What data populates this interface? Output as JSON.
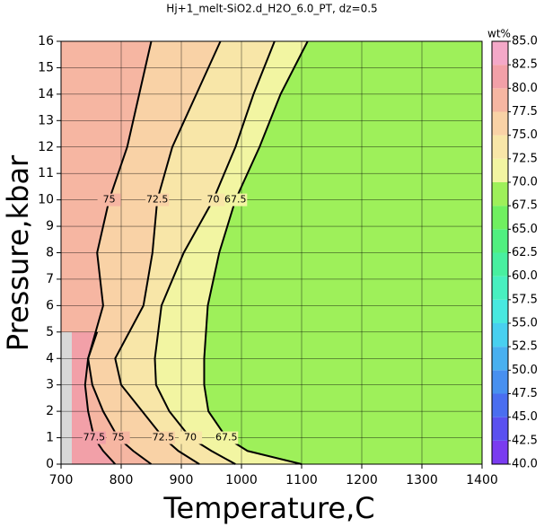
{
  "chart_data": {
    "type": "contour",
    "title": "Hj+1_melt-SiO2.d_H2O_6.0_PT, dz=0.5",
    "x_label": "Temperature,C",
    "y_label": "Pressure,kbar",
    "xlim": [
      700,
      1400
    ],
    "ylim": [
      0,
      16
    ],
    "xticks": [
      700,
      800,
      900,
      1000,
      1100,
      1200,
      1300,
      1400
    ],
    "yticks": [
      0,
      1,
      2,
      3,
      4,
      5,
      6,
      7,
      8,
      9,
      10,
      11,
      12,
      13,
      14,
      15,
      16
    ],
    "grid": true,
    "background_color": "#9ef05a",
    "contours": [
      {
        "level": 67.5,
        "color": "#f2f5a2",
        "y": [
          0,
          0.5,
          1,
          2,
          3,
          4,
          6,
          8,
          10,
          12,
          14,
          16
        ],
        "x": [
          1100,
          1010,
          975,
          945,
          938,
          938,
          944,
          963,
          990,
          1030,
          1065,
          1110
        ]
      },
      {
        "level": 70,
        "color": "#f8e6a8",
        "y": [
          0,
          0.5,
          1,
          2,
          3,
          4,
          6,
          8,
          10,
          12,
          14,
          16
        ],
        "x": [
          990,
          950,
          915,
          880,
          858,
          856,
          867,
          904,
          953,
          990,
          1020,
          1055
        ]
      },
      {
        "level": 72.5,
        "color": "#f9d2a6",
        "y": [
          0,
          0.5,
          1,
          2,
          3,
          4,
          6,
          8,
          10,
          12,
          14,
          16
        ],
        "x": [
          930,
          895,
          870,
          835,
          800,
          790,
          837,
          852,
          860,
          885,
          925,
          965
        ]
      },
      {
        "level": 75,
        "color": "#f6b6a2",
        "y": [
          0,
          0.5,
          1,
          2,
          3,
          4,
          6,
          8,
          10,
          12,
          14,
          16
        ],
        "x": [
          850,
          820,
          795,
          770,
          752,
          745,
          770,
          760,
          780,
          810,
          830,
          850
        ]
      },
      {
        "level": 77.5,
        "color": "#f2a0a8",
        "y": [
          0,
          0.5,
          1,
          2,
          3,
          4,
          5
        ],
        "x": [
          790,
          770,
          755,
          745,
          740,
          745,
          760
        ]
      }
    ],
    "colorbar": {
      "title": "wt%",
      "lim": [
        40,
        85
      ],
      "ticks": [
        {
          "value": 40,
          "label": "40.0"
        },
        {
          "value": 42.5,
          "label": "42.5"
        },
        {
          "value": 45,
          "label": "45.0"
        },
        {
          "value": 47.5,
          "label": "47.5"
        },
        {
          "value": 50,
          "label": "50.0"
        },
        {
          "value": 52.5,
          "label": "52.5"
        },
        {
          "value": 55,
          "label": "55.0"
        },
        {
          "value": 57.5,
          "label": "57.5"
        },
        {
          "value": 60,
          "label": "60.0"
        },
        {
          "value": 62.5,
          "label": "62.5"
        },
        {
          "value": 65,
          "label": "65.0"
        },
        {
          "value": 67.5,
          "label": "67.5"
        },
        {
          "value": 70,
          "label": "70.0"
        },
        {
          "value": 72.5,
          "label": "72.5"
        },
        {
          "value": 75,
          "label": "75.0"
        },
        {
          "value": 77.5,
          "label": "77.5"
        },
        {
          "value": 80,
          "label": "80.0"
        },
        {
          "value": 82.5,
          "label": "82.5"
        },
        {
          "value": 85,
          "label": "85.0"
        }
      ],
      "colors": [
        "#7a3cf0",
        "#5a50f0",
        "#4a6ef0",
        "#4890f0",
        "#48b0f0",
        "#48d0f0",
        "#48e8e0",
        "#48f0c0",
        "#48f0a0",
        "#50f080",
        "#70f060",
        "#9ef05a",
        "#f2f5a2",
        "#f8e6a8",
        "#f9d2a6",
        "#f6b6a2",
        "#f2a0a8",
        "#f4a8c8",
        "#f6c8e8"
      ]
    }
  }
}
